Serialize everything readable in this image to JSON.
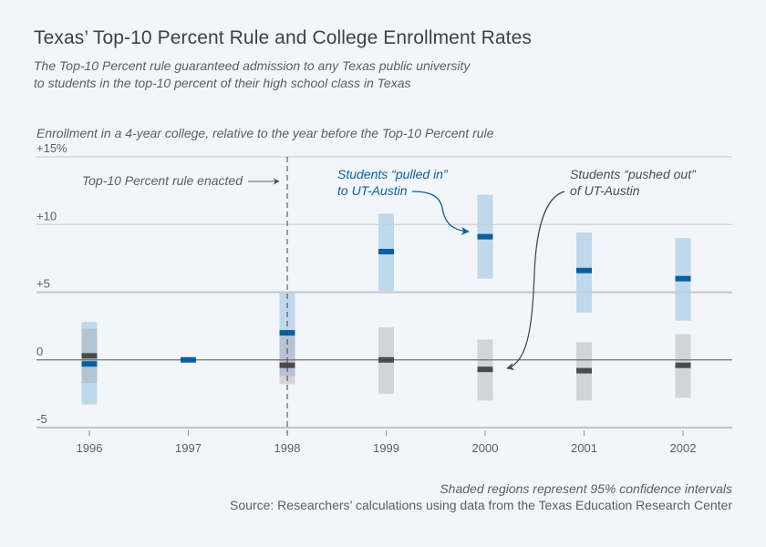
{
  "header": {
    "title": "Texas’ Top-10 Percent Rule and College Enrollment Rates",
    "subtitle_line1": "The Top-10 Percent rule guaranteed admission to any Texas public university",
    "subtitle_line2": "to students in the top-10 percent of their high school class in Texas"
  },
  "footer": {
    "note": "Shaded regions represent 95% confidence intervals",
    "source": "Source: Researchers’ calculations using data from the Texas Education Research Center"
  },
  "colors": {
    "blue": "#0a5fa0",
    "blue_ci": "#c3d9ea",
    "gray": "#4a4b4f",
    "gray_ci": "#d7d8db",
    "grid": "#b9bcc2",
    "background": "#f2f6fa"
  },
  "chart_data": {
    "type": "scatter",
    "title": "Texas’ Top-10 Percent Rule and College Enrollment Rates",
    "ylabel": "Enrollment in a 4-year college, relative to the year before the Top-10 Percent rule",
    "xlabel": "",
    "ylim": [
      -5,
      15
    ],
    "y_ticks": [
      {
        "value": 15,
        "label": "+15%"
      },
      {
        "value": 10,
        "label": "+10"
      },
      {
        "value": 5,
        "label": "+5"
      },
      {
        "value": 0,
        "label": "0"
      },
      {
        "value": -5,
        "label": "-5"
      }
    ],
    "categories": [
      "1996",
      "1997",
      "1998",
      "1999",
      "2000",
      "2001",
      "2002"
    ],
    "grid": true,
    "series": [
      {
        "name": "Students “pulled in” to UT-Austin",
        "color": "#0a5fa0",
        "values": [
          -0.3,
          0.0,
          2.0,
          8.0,
          9.1,
          6.6,
          6.0
        ],
        "ci_low": [
          -3.3,
          null,
          -1.2,
          5.1,
          6.0,
          3.5,
          2.9
        ],
        "ci_high": [
          2.8,
          null,
          5.0,
          10.8,
          12.2,
          9.4,
          9.0
        ]
      },
      {
        "name": "Students “pushed out” of UT-Austin",
        "color": "#4a4b4f",
        "values": [
          0.3,
          null,
          -0.4,
          0.0,
          -0.7,
          -0.8,
          -0.4
        ],
        "ci_low": [
          -1.7,
          null,
          -1.8,
          -2.5,
          -3.0,
          -3.0,
          -2.8
        ],
        "ci_high": [
          2.3,
          null,
          2.0,
          2.4,
          1.5,
          1.3,
          1.9
        ]
      }
    ],
    "annotations": {
      "rule_enacted": {
        "text": "Top-10 Percent rule enacted",
        "x": "1998"
      },
      "pulled_in_line1": "Students “pulled in”",
      "pulled_in_line2": "to UT-Austin",
      "pushed_out_line1": "Students “pushed out”",
      "pushed_out_line2": "of UT-Austin"
    }
  }
}
